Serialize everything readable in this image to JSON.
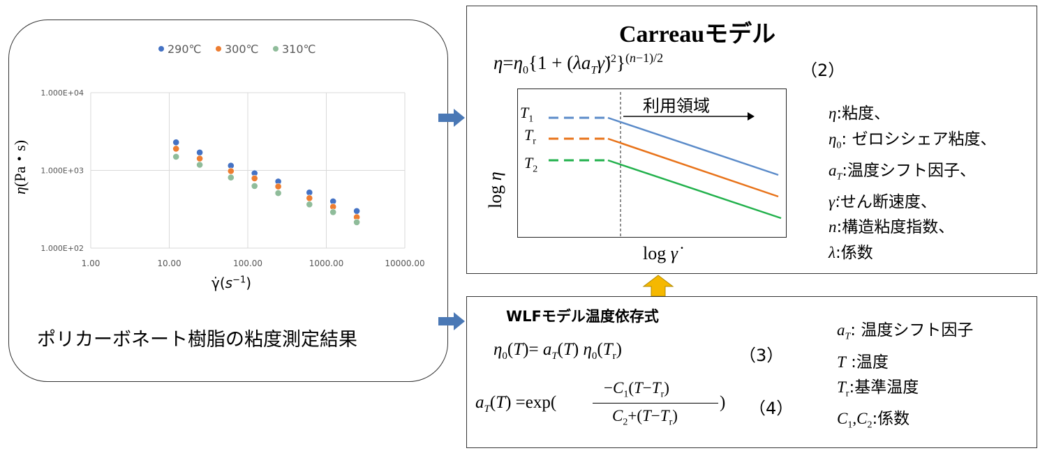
{
  "left_panel": {
    "caption": "ポリカーボネート樹脂の粘度測定結果",
    "chart_data": {
      "type": "scatter",
      "log_x": true,
      "log_y": true,
      "xlim": [
        1,
        10000
      ],
      "ylim": [
        100,
        10000
      ],
      "x_ticks": [
        "1.00",
        "10.00",
        "100.00",
        "1000.00",
        "10000.00"
      ],
      "y_ticks": [
        "1.000E+02",
        "1.000E+03",
        "1.000E+04"
      ],
      "xlabel": "γ̇(s⁻¹)",
      "ylabel": "η(Pa・s)",
      "legend_position": "top",
      "grid": true,
      "x": [
        12.2,
        24.4,
        61.0,
        122,
        244,
        610,
        1220,
        2440
      ],
      "series": [
        {
          "name": "290℃",
          "color": "#4472C4",
          "values": [
            2300,
            1700,
            1150,
            920,
            720,
            520,
            400,
            300
          ]
        },
        {
          "name": "300℃",
          "color": "#ED7D31",
          "values": [
            1900,
            1420,
            980,
            790,
            620,
            440,
            340,
            250
          ]
        },
        {
          "name": "310℃",
          "color": "#8FBC9A",
          "values": [
            1500,
            1180,
            810,
            630,
            510,
            365,
            290,
            215
          ]
        }
      ]
    }
  },
  "carreau": {
    "title": "Carreauモデル",
    "equation_number": "（2）",
    "region_label": "利用領域",
    "y_axis_label": "log η",
    "x_axis_label": "log γ̇",
    "line_labels": {
      "t1": "T1",
      "tr": "Tr",
      "t2": "T2"
    },
    "line_colors": {
      "t1": "#5B8BC9",
      "tr": "#E8731A",
      "t2": "#22B14C"
    },
    "legend": [
      {
        "sym": "η",
        "text": ":粘度、"
      },
      {
        "sym": "η0",
        "text": ": ゼロシシェア粘度、"
      },
      {
        "sym": "aT",
        "text": ":温度シフト因子、"
      },
      {
        "sym": "γ̇",
        "text": ":せん断速度、"
      },
      {
        "sym": "n",
        "text": ":構造粘度指数、"
      },
      {
        "sym": "λ",
        "text": ":係数"
      }
    ]
  },
  "wlf": {
    "title": "WLFモデル温度依存式",
    "eq3_number": "（3）",
    "eq4_number": "（4）",
    "legend": [
      {
        "sym": "aT",
        "text": ": 温度シフト因子"
      },
      {
        "sym": "T",
        "text": ":温度"
      },
      {
        "sym": "Tr",
        "text": ":基準温度"
      },
      {
        "sym": "C1,C2",
        "text": ":係数"
      }
    ]
  },
  "colors": {
    "arrow_blue": "#4A78B5",
    "arrow_orange": "#F5B800"
  }
}
